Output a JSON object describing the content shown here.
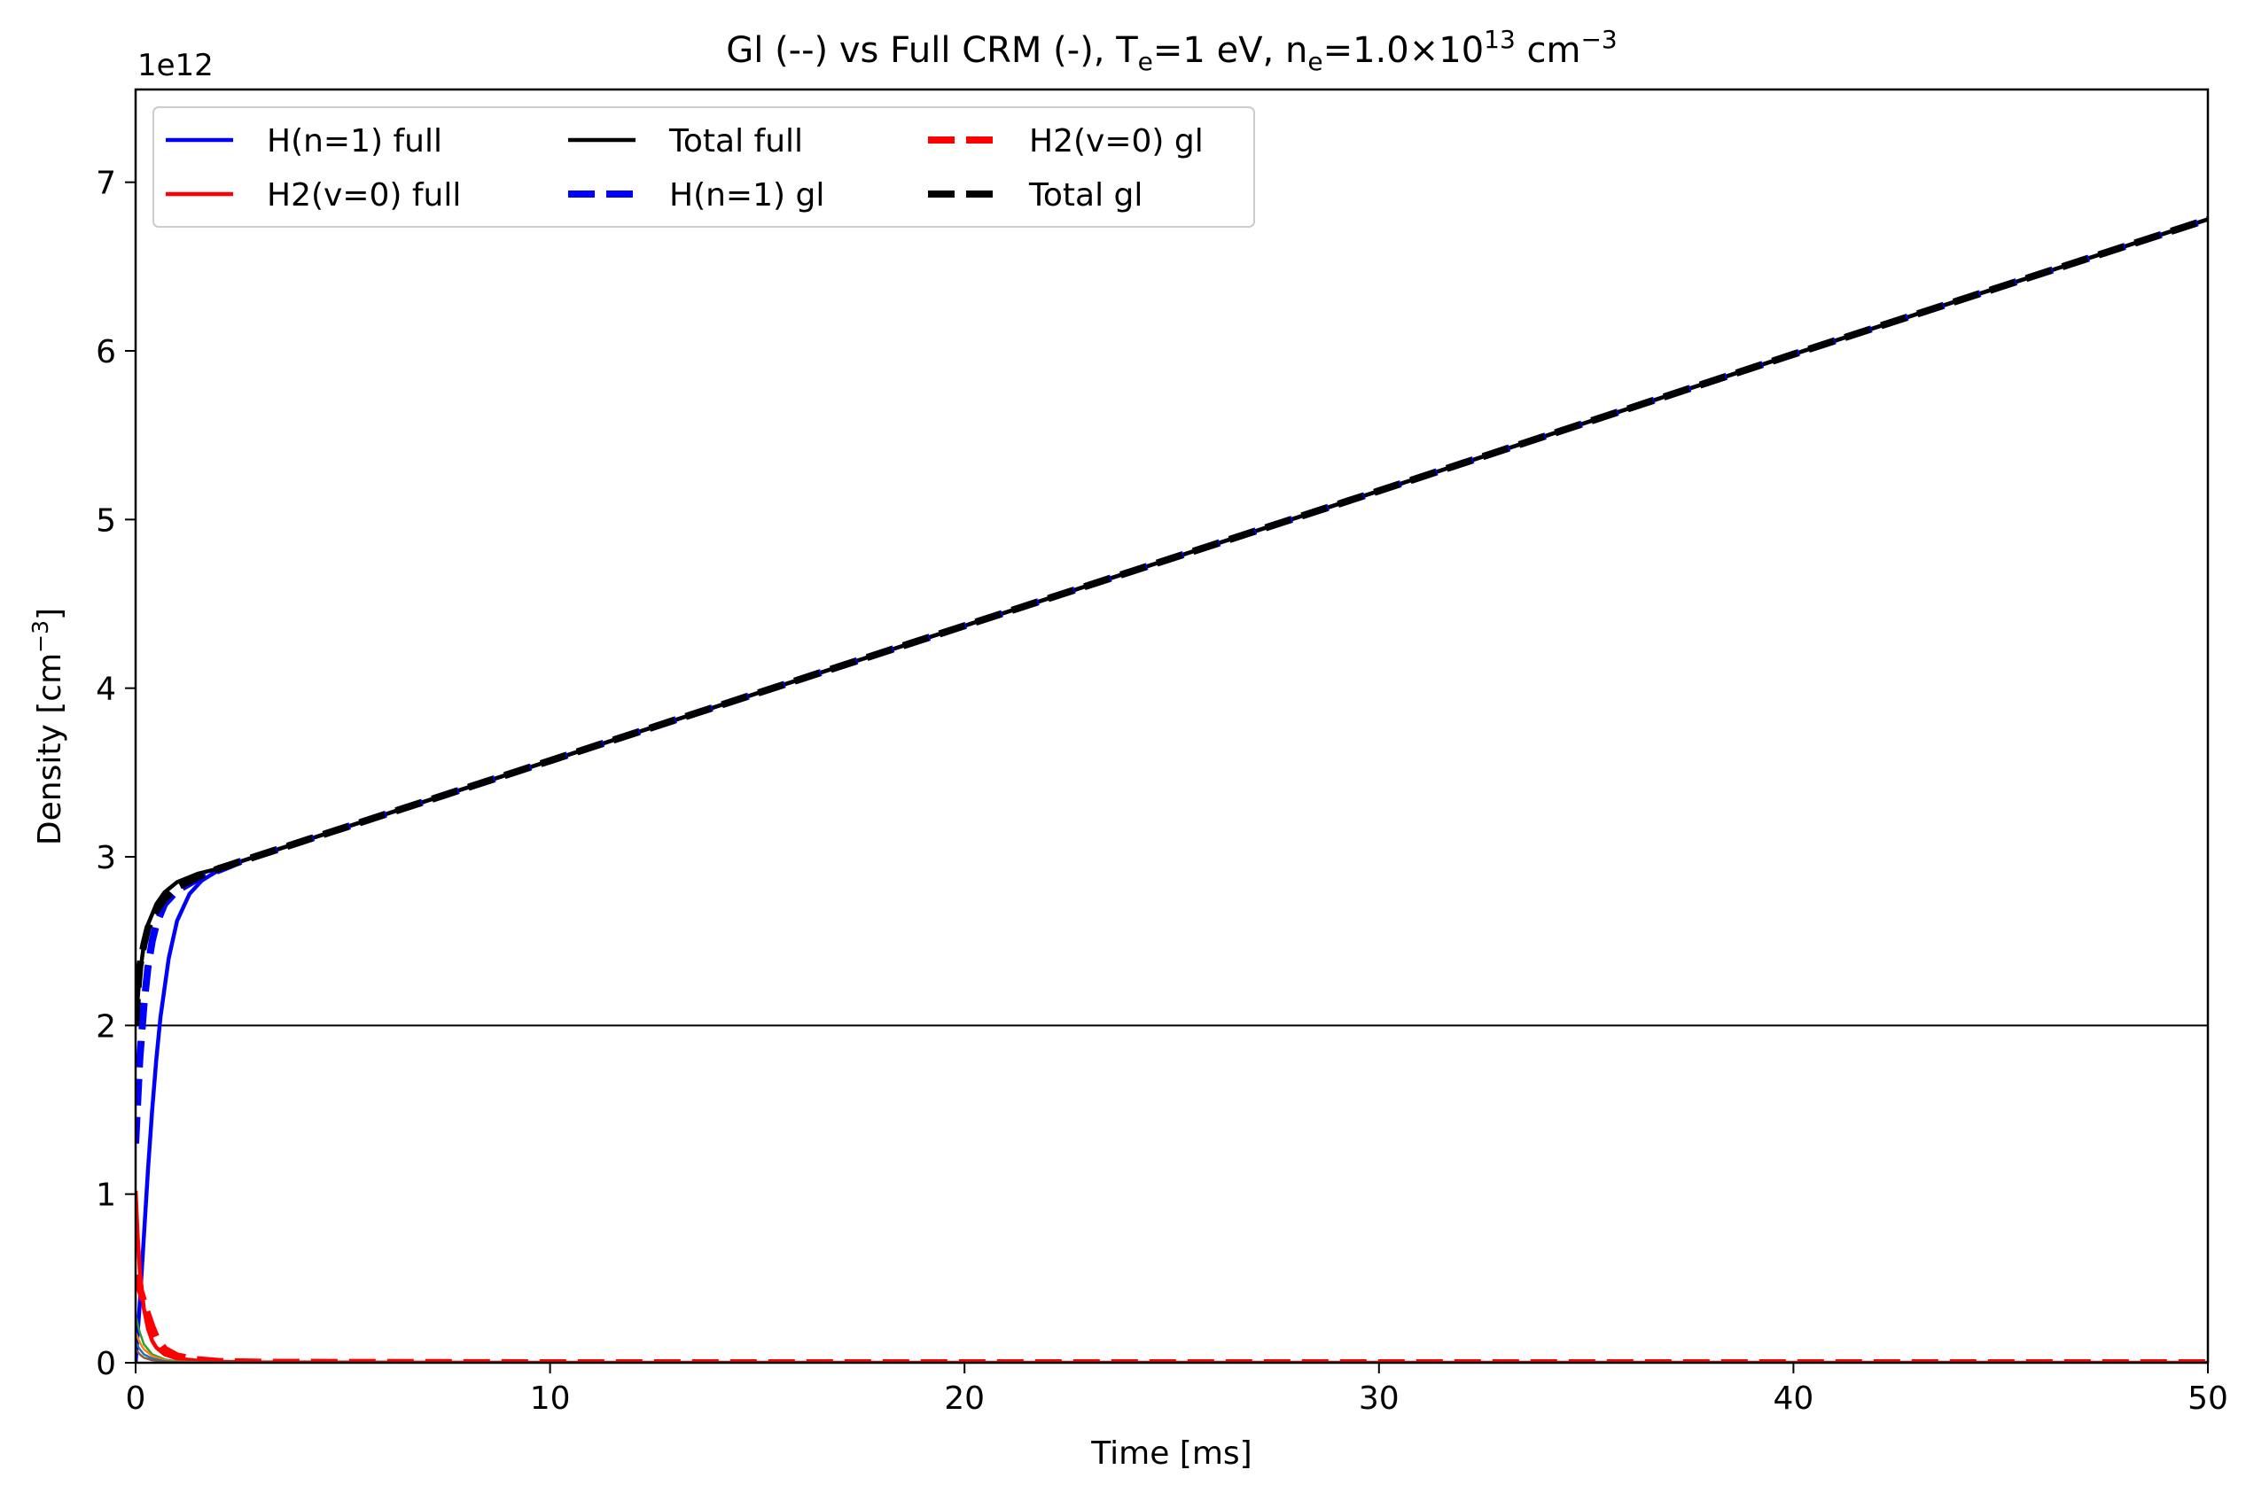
{
  "chart_data": {
    "type": "line",
    "title": {
      "prefix": "Gl (--) vs Full CRM (-),  ",
      "te_symbol": "T",
      "te_sub": "e",
      "te_value": "=1 eV, ",
      "ne_symbol": "n",
      "ne_sub": "e",
      "ne_value": "=1.0×10",
      "ne_exp": "13",
      "unit": " cm",
      "unit_exp": "−3"
    },
    "xlabel": "Time [ms]",
    "ylabel": {
      "base": "Density [cm",
      "exp": "−3",
      "close": "]"
    },
    "y_offset_label": "1e12",
    "xlim": [
      0,
      50
    ],
    "ylim": [
      0,
      7.55
    ],
    "y_scale_note": "values in units of 1e12 cm^-3",
    "xticks": [
      "0",
      "10",
      "20",
      "30",
      "40",
      "50"
    ],
    "yticks": [
      "0",
      "1",
      "2",
      "3",
      "4",
      "5",
      "6",
      "7"
    ],
    "hline": 2.0,
    "legend": {
      "placement": "upper-left",
      "columns": 3,
      "entries": [
        {
          "label": "H(n=1) full",
          "color": "#0000ff",
          "style": "solid"
        },
        {
          "label": "H2(v=0) full",
          "color": "#ff0000",
          "style": "solid"
        },
        {
          "label": "Total full",
          "color": "#000000",
          "style": "solid"
        },
        {
          "label": "H(n=1) gl",
          "color": "#0000ff",
          "style": "dashed"
        },
        {
          "label": "H2(v=0) gl",
          "color": "#ff0000",
          "style": "dashed"
        },
        {
          "label": "Total gl",
          "color": "#000000",
          "style": "dashed"
        }
      ]
    },
    "series": [
      {
        "name": "H(n=1) full",
        "color": "#0000ff",
        "style": "solid",
        "width": 4.5,
        "x": [
          0,
          0.1,
          0.2,
          0.3,
          0.4,
          0.5,
          0.6,
          0.8,
          1.0,
          1.3,
          1.6,
          2.0,
          2.5,
          3,
          5,
          10,
          20,
          30,
          40,
          50
        ],
        "y": [
          0.0,
          0.35,
          0.75,
          1.15,
          1.5,
          1.8,
          2.05,
          2.4,
          2.62,
          2.78,
          2.86,
          2.92,
          2.97,
          3.01,
          3.17,
          3.57,
          4.37,
          5.17,
          5.98,
          6.78
        ]
      },
      {
        "name": "H2(v=0) full",
        "color": "#ff0000",
        "style": "solid",
        "width": 4.5,
        "x": [
          0,
          0.05,
          0.1,
          0.2,
          0.3,
          0.4,
          0.5,
          0.7,
          1.0,
          1.5,
          2.0,
          3.0,
          10,
          20,
          30,
          40,
          50
        ],
        "y": [
          1.02,
          0.75,
          0.55,
          0.32,
          0.2,
          0.13,
          0.09,
          0.05,
          0.025,
          0.012,
          0.006,
          0.002,
          0.0,
          0.0,
          0.0,
          0.0,
          0.0
        ]
      },
      {
        "name": "Total full",
        "color": "#000000",
        "style": "solid",
        "width": 4.5,
        "x": [
          0,
          0.1,
          0.2,
          0.3,
          0.5,
          0.7,
          1.0,
          1.5,
          2.0,
          2.5,
          3,
          5,
          10,
          20,
          30,
          40,
          50
        ],
        "y": [
          2.02,
          2.3,
          2.48,
          2.6,
          2.72,
          2.79,
          2.85,
          2.9,
          2.93,
          2.97,
          3.01,
          3.17,
          3.57,
          4.37,
          5.17,
          5.98,
          6.78
        ]
      },
      {
        "name": "H(n=1) gl",
        "color": "#0000ff",
        "style": "dashed",
        "width": 8,
        "x": [
          0,
          0.05,
          0.1,
          0.2,
          0.3,
          0.4,
          0.5,
          0.7,
          1.0,
          1.5,
          2.0,
          2.5,
          3,
          5,
          10,
          20,
          30,
          40,
          50
        ],
        "y": [
          1.3,
          1.55,
          1.8,
          2.12,
          2.35,
          2.5,
          2.6,
          2.72,
          2.8,
          2.87,
          2.92,
          2.97,
          3.01,
          3.17,
          3.57,
          4.37,
          5.17,
          5.98,
          6.78
        ]
      },
      {
        "name": "H2(v=0) gl",
        "color": "#ff0000",
        "style": "dashed",
        "width": 8,
        "x": [
          0,
          0.05,
          0.1,
          0.2,
          0.3,
          0.4,
          0.5,
          0.7,
          1.0,
          1.5,
          2.0,
          3.0,
          10,
          20,
          30,
          40,
          50
        ],
        "y": [
          0.52,
          0.48,
          0.44,
          0.36,
          0.28,
          0.21,
          0.15,
          0.08,
          0.04,
          0.018,
          0.008,
          0.003,
          0.0,
          0.0,
          0.0,
          0.0,
          0.0
        ]
      },
      {
        "name": "Total gl",
        "color": "#000000",
        "style": "dashed",
        "width": 8,
        "x": [
          0,
          0.05,
          0.1,
          0.2,
          0.3,
          0.5,
          0.7,
          1.0,
          1.5,
          2.0,
          2.5,
          3,
          5,
          10,
          20,
          30,
          40,
          50
        ],
        "y": [
          2.0,
          2.2,
          2.35,
          2.48,
          2.58,
          2.68,
          2.75,
          2.82,
          2.88,
          2.93,
          2.97,
          3.01,
          3.17,
          3.57,
          4.37,
          5.17,
          5.98,
          6.78
        ]
      },
      {
        "color": "#2ca02c",
        "style": "solid",
        "width": 2.5,
        "x": [
          0,
          0.1,
          0.2,
          0.4,
          0.7,
          1.0,
          1.5,
          3,
          50
        ],
        "y": [
          0.28,
          0.18,
          0.11,
          0.05,
          0.02,
          0.008,
          0.003,
          0.0,
          0.0
        ]
      },
      {
        "color": "#ff7f0e",
        "style": "solid",
        "width": 2.5,
        "x": [
          0,
          0.1,
          0.2,
          0.4,
          0.7,
          1.0,
          1.5,
          3,
          50
        ],
        "y": [
          0.18,
          0.12,
          0.08,
          0.04,
          0.015,
          0.006,
          0.002,
          0.0,
          0.0
        ]
      },
      {
        "color": "#1f77b4",
        "style": "solid",
        "width": 2.5,
        "x": [
          0,
          0.1,
          0.2,
          0.4,
          0.7,
          1.0,
          1.5,
          3,
          50
        ],
        "y": [
          0.12,
          0.08,
          0.05,
          0.025,
          0.01,
          0.004,
          0.001,
          0.0,
          0.0
        ]
      },
      {
        "color": "#8c564b",
        "style": "solid",
        "width": 2.5,
        "x": [
          0,
          0.1,
          0.2,
          0.4,
          0.7,
          1.0,
          1.5,
          3,
          50
        ],
        "y": [
          0.08,
          0.05,
          0.03,
          0.015,
          0.006,
          0.002,
          0.0,
          0.0,
          0.0
        ]
      }
    ]
  }
}
